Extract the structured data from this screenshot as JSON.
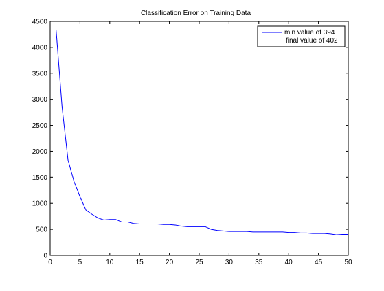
{
  "chart_data": {
    "type": "line",
    "title": "Classification Error on Training Data",
    "xlabel": "",
    "ylabel": "",
    "xlim": [
      0,
      50
    ],
    "ylim": [
      0,
      4500
    ],
    "xticks": [
      0,
      5,
      10,
      15,
      20,
      25,
      30,
      35,
      40,
      45,
      50
    ],
    "yticks": [
      0,
      500,
      1000,
      1500,
      2000,
      2500,
      3000,
      3500,
      4000,
      4500
    ],
    "grid": false,
    "legend_position": "top-right",
    "legend_lines": [
      "min value of 394",
      "final value of 402"
    ],
    "series": [
      {
        "color": "#0000ff",
        "x": [
          1,
          2,
          3,
          4,
          5,
          6,
          7,
          8,
          9,
          10,
          11,
          12,
          13,
          14,
          15,
          16,
          17,
          18,
          19,
          20,
          21,
          22,
          23,
          24,
          25,
          26,
          27,
          28,
          29,
          30,
          31,
          32,
          33,
          34,
          35,
          36,
          37,
          38,
          39,
          40,
          41,
          42,
          43,
          44,
          45,
          46,
          47,
          48,
          49,
          50
        ],
        "y": [
          4330,
          2850,
          1830,
          1420,
          1130,
          870,
          790,
          720,
          680,
          690,
          690,
          640,
          640,
          610,
          600,
          600,
          600,
          600,
          590,
          590,
          580,
          560,
          550,
          550,
          550,
          550,
          500,
          480,
          470,
          460,
          460,
          460,
          460,
          450,
          450,
          450,
          450,
          450,
          450,
          440,
          440,
          430,
          430,
          420,
          420,
          420,
          410,
          394,
          402,
          402
        ]
      }
    ]
  }
}
